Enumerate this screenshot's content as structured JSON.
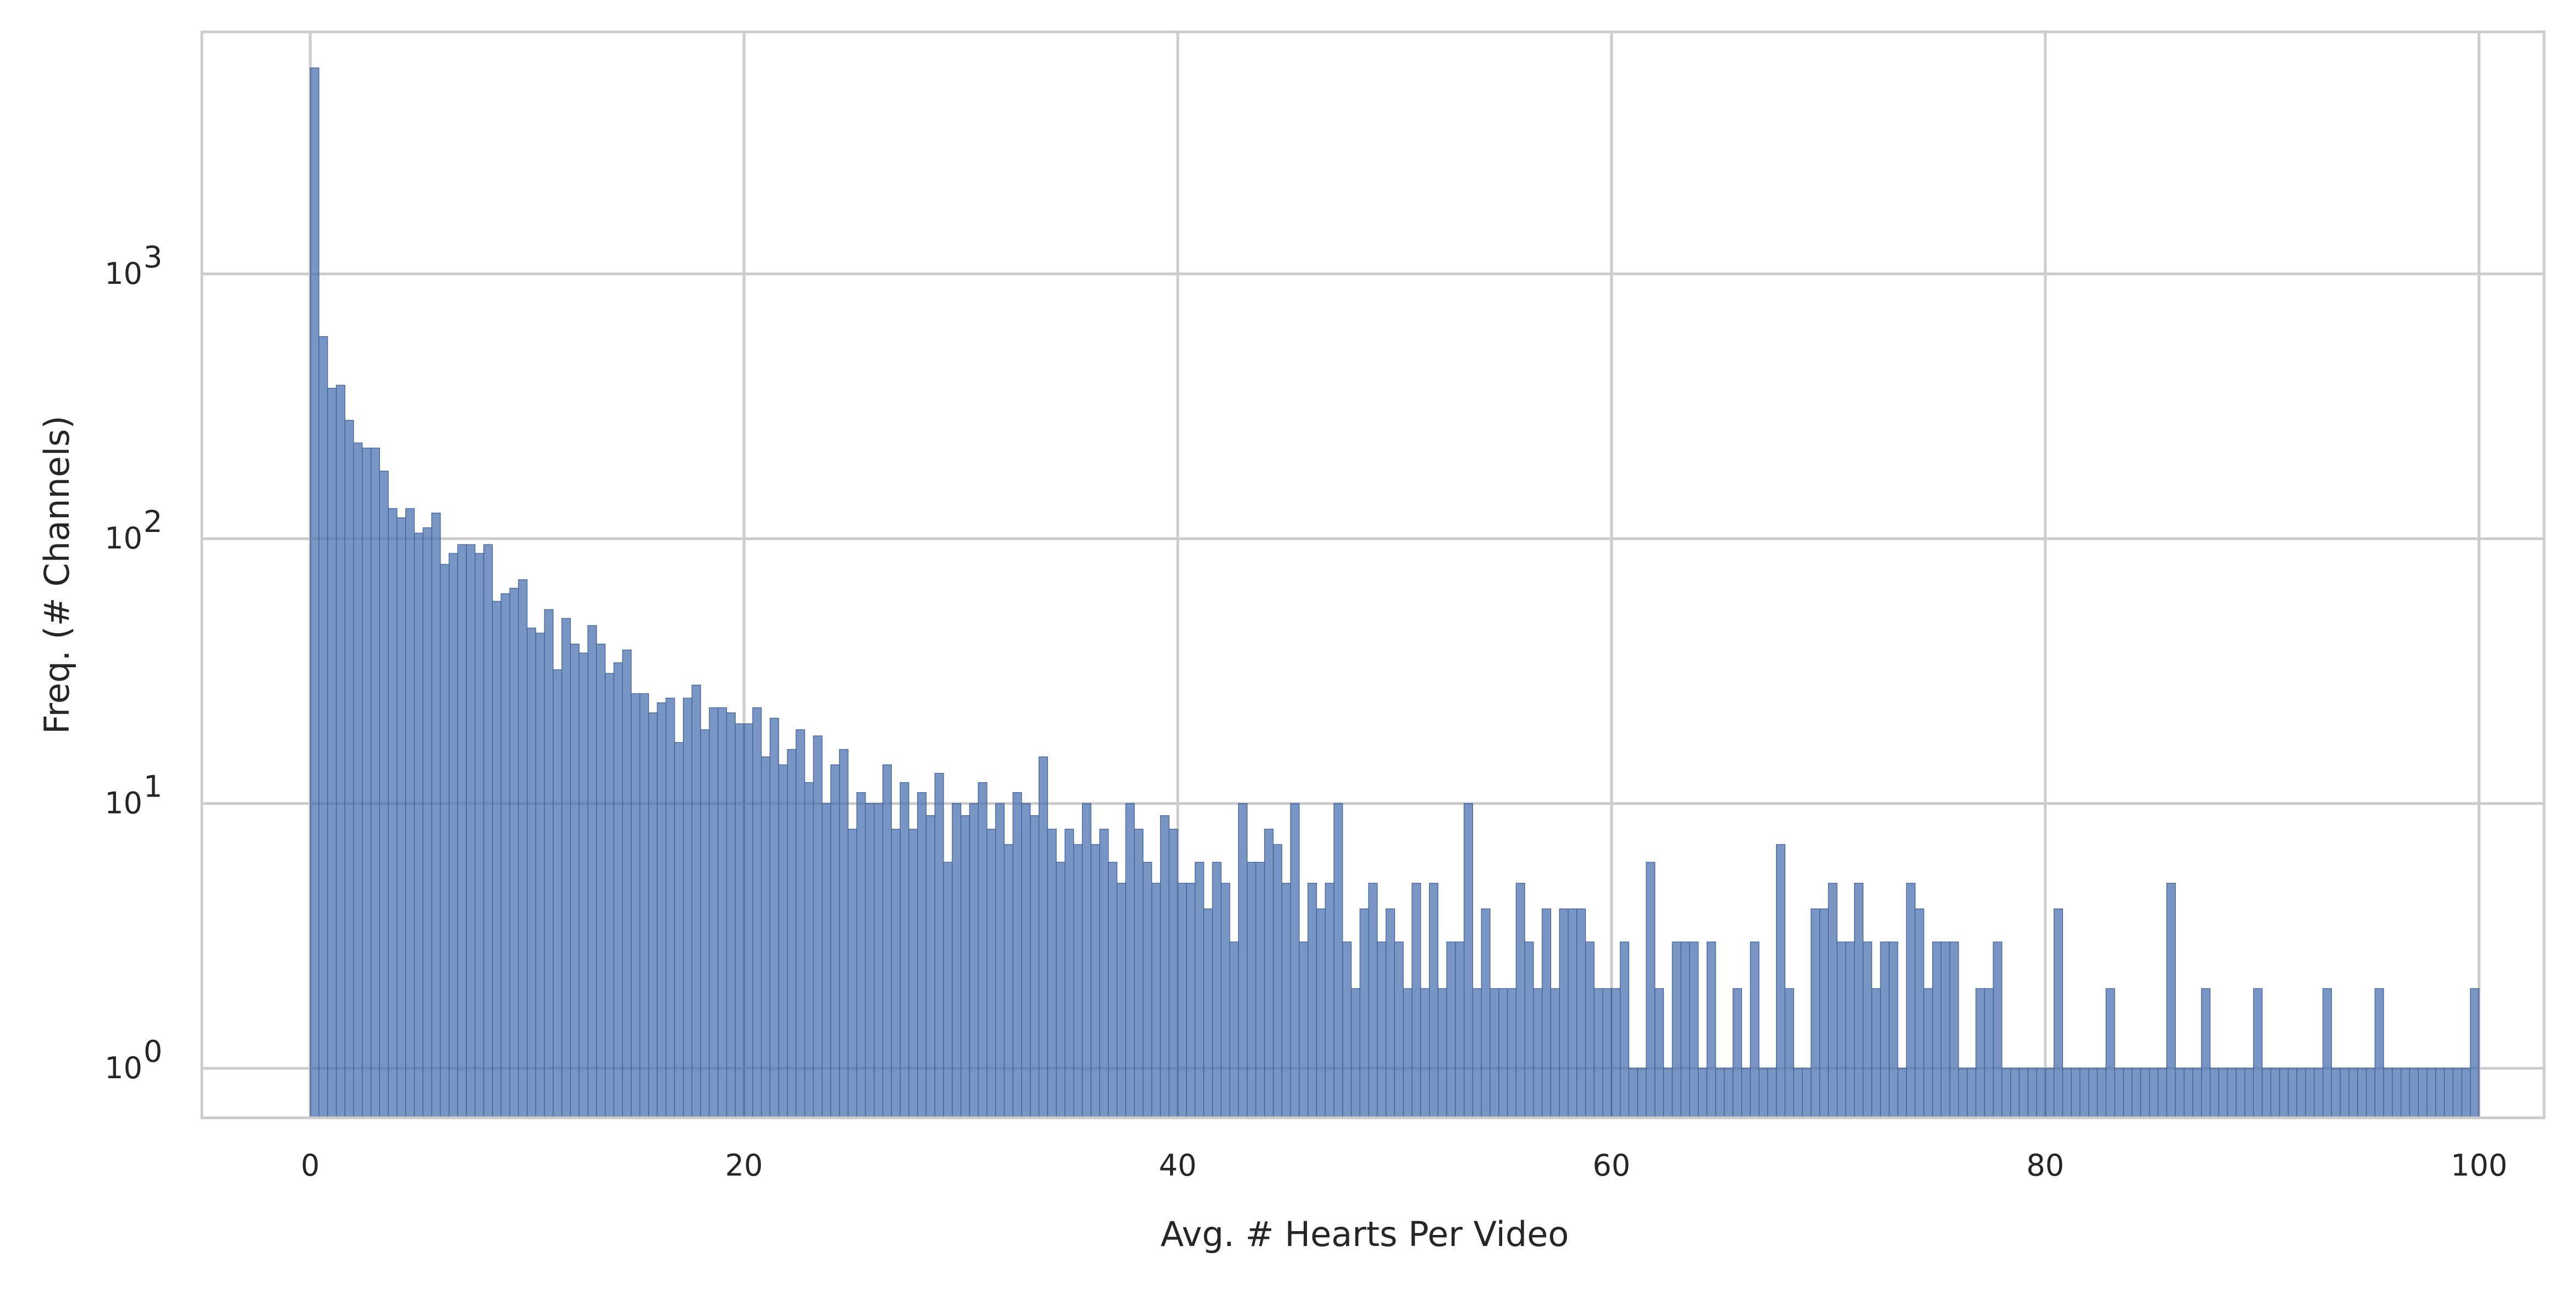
{
  "chart_data": {
    "type": "bar",
    "title": "",
    "xlabel": "Avg. # Hearts Per Video",
    "ylabel": "Freq. (# Channels)",
    "xlim": [
      -5,
      103
    ],
    "ylim": [
      0.65,
      8200
    ],
    "yscale": "log",
    "grid": true,
    "bin_width": 0.4,
    "x_ticks": [
      0,
      20,
      40,
      60,
      80,
      100
    ],
    "y_ticks": [
      1,
      10,
      100,
      1000
    ],
    "y_tick_bases": [
      "10",
      "10",
      "10",
      "10"
    ],
    "y_tick_exponents": [
      "0",
      "1",
      "2",
      "3"
    ],
    "color": "#4c72b0",
    "bins": [
      [
        0.0,
        6000
      ],
      [
        0.4,
        580
      ],
      [
        0.8,
        370
      ],
      [
        1.2,
        380
      ],
      [
        1.6,
        280
      ],
      [
        2.0,
        230
      ],
      [
        2.4,
        220
      ],
      [
        2.8,
        220
      ],
      [
        3.2,
        180
      ],
      [
        3.6,
        130
      ],
      [
        4.0,
        120
      ],
      [
        4.4,
        130
      ],
      [
        4.8,
        105
      ],
      [
        5.2,
        110
      ],
      [
        5.6,
        125
      ],
      [
        6.0,
        80
      ],
      [
        6.4,
        88
      ],
      [
        6.8,
        95
      ],
      [
        7.2,
        95
      ],
      [
        7.6,
        88
      ],
      [
        8.0,
        95
      ],
      [
        8.4,
        58
      ],
      [
        8.8,
        62
      ],
      [
        9.2,
        65
      ],
      [
        9.6,
        70
      ],
      [
        10.0,
        46
      ],
      [
        10.4,
        44
      ],
      [
        10.8,
        54
      ],
      [
        11.2,
        32
      ],
      [
        11.6,
        50
      ],
      [
        12.0,
        40
      ],
      [
        12.4,
        37
      ],
      [
        12.8,
        47
      ],
      [
        13.2,
        40
      ],
      [
        13.6,
        31
      ],
      [
        14.0,
        34
      ],
      [
        14.4,
        38
      ],
      [
        14.8,
        26
      ],
      [
        15.2,
        26
      ],
      [
        15.6,
        22
      ],
      [
        16.0,
        24
      ],
      [
        16.4,
        25
      ],
      [
        16.8,
        17
      ],
      [
        17.2,
        25
      ],
      [
        17.6,
        28
      ],
      [
        18.0,
        19
      ],
      [
        18.4,
        23
      ],
      [
        18.8,
        23
      ],
      [
        19.2,
        22
      ],
      [
        19.6,
        20
      ],
      [
        20.0,
        20
      ],
      [
        20.4,
        23
      ],
      [
        20.8,
        15
      ],
      [
        21.2,
        21
      ],
      [
        21.6,
        14
      ],
      [
        22.0,
        16
      ],
      [
        22.4,
        19
      ],
      [
        22.8,
        12
      ],
      [
        23.2,
        18
      ],
      [
        23.6,
        10
      ],
      [
        24.0,
        14
      ],
      [
        24.4,
        16
      ],
      [
        24.8,
        8
      ],
      [
        25.2,
        11
      ],
      [
        25.6,
        10
      ],
      [
        26.0,
        10
      ],
      [
        26.4,
        14
      ],
      [
        26.8,
        8
      ],
      [
        27.2,
        12
      ],
      [
        27.6,
        8
      ],
      [
        28.0,
        11
      ],
      [
        28.4,
        9
      ],
      [
        28.8,
        13
      ],
      [
        29.2,
        6
      ],
      [
        29.6,
        10
      ],
      [
        30.0,
        9
      ],
      [
        30.4,
        10
      ],
      [
        30.8,
        12
      ],
      [
        31.2,
        8
      ],
      [
        31.6,
        10
      ],
      [
        32.0,
        7
      ],
      [
        32.4,
        11
      ],
      [
        32.8,
        10
      ],
      [
        33.2,
        9
      ],
      [
        33.6,
        15
      ],
      [
        34.0,
        8
      ],
      [
        34.4,
        6
      ],
      [
        34.8,
        8
      ],
      [
        35.2,
        7
      ],
      [
        35.6,
        10
      ],
      [
        36.0,
        7
      ],
      [
        36.4,
        8
      ],
      [
        36.8,
        6
      ],
      [
        37.2,
        5
      ],
      [
        37.6,
        10
      ],
      [
        38.0,
        8
      ],
      [
        38.4,
        6
      ],
      [
        38.8,
        5
      ],
      [
        39.2,
        9
      ],
      [
        39.6,
        8
      ],
      [
        40.0,
        5
      ],
      [
        40.4,
        5
      ],
      [
        40.8,
        6
      ],
      [
        41.2,
        4
      ],
      [
        41.6,
        6
      ],
      [
        42.0,
        5
      ],
      [
        42.4,
        3
      ],
      [
        42.8,
        10
      ],
      [
        43.2,
        6
      ],
      [
        43.6,
        6
      ],
      [
        44.0,
        8
      ],
      [
        44.4,
        7
      ],
      [
        44.8,
        5
      ],
      [
        45.2,
        10
      ],
      [
        45.6,
        3
      ],
      [
        46.0,
        5
      ],
      [
        46.4,
        4
      ],
      [
        46.8,
        5
      ],
      [
        47.2,
        10
      ],
      [
        47.6,
        3
      ],
      [
        48.0,
        2
      ],
      [
        48.4,
        4
      ],
      [
        48.8,
        5
      ],
      [
        49.2,
        3
      ],
      [
        49.6,
        4
      ],
      [
        50.0,
        3
      ],
      [
        50.4,
        2
      ],
      [
        50.8,
        5
      ],
      [
        51.2,
        2
      ],
      [
        51.6,
        5
      ],
      [
        52.0,
        2
      ],
      [
        52.4,
        3
      ],
      [
        52.8,
        3
      ],
      [
        53.2,
        10
      ],
      [
        53.6,
        2
      ],
      [
        54.0,
        4
      ],
      [
        54.4,
        2
      ],
      [
        54.8,
        2
      ],
      [
        55.2,
        2
      ],
      [
        55.6,
        5
      ],
      [
        56.0,
        3
      ],
      [
        56.4,
        2
      ],
      [
        56.8,
        4
      ],
      [
        57.2,
        2
      ],
      [
        57.6,
        4
      ],
      [
        58.0,
        4
      ],
      [
        58.4,
        4
      ],
      [
        58.8,
        3
      ],
      [
        59.2,
        2
      ],
      [
        59.6,
        2
      ],
      [
        60.0,
        2
      ],
      [
        60.4,
        3
      ],
      [
        60.8,
        1
      ],
      [
        61.2,
        1
      ],
      [
        61.6,
        6
      ],
      [
        62.0,
        2
      ],
      [
        62.4,
        1
      ],
      [
        62.8,
        3
      ],
      [
        63.2,
        3
      ],
      [
        63.6,
        3
      ],
      [
        64.0,
        1
      ],
      [
        64.4,
        3
      ],
      [
        64.8,
        1
      ],
      [
        65.2,
        1
      ],
      [
        65.6,
        2
      ],
      [
        66.0,
        1
      ],
      [
        66.4,
        3
      ],
      [
        66.8,
        1
      ],
      [
        67.2,
        1
      ],
      [
        67.6,
        7
      ],
      [
        68.0,
        2
      ],
      [
        68.4,
        1
      ],
      [
        68.8,
        1
      ],
      [
        69.2,
        4
      ],
      [
        69.6,
        4
      ],
      [
        70.0,
        5
      ],
      [
        70.4,
        3
      ],
      [
        70.8,
        3
      ],
      [
        71.2,
        5
      ],
      [
        71.6,
        3
      ],
      [
        72.0,
        2
      ],
      [
        72.4,
        3
      ],
      [
        72.8,
        3
      ],
      [
        73.2,
        1
      ],
      [
        73.6,
        5
      ],
      [
        74.0,
        4
      ],
      [
        74.4,
        2
      ],
      [
        74.8,
        3
      ],
      [
        75.2,
        3
      ],
      [
        75.6,
        3
      ],
      [
        76.0,
        1
      ],
      [
        76.4,
        1
      ],
      [
        76.8,
        2
      ],
      [
        77.2,
        2
      ],
      [
        77.6,
        3
      ],
      [
        78.0,
        1
      ],
      [
        78.4,
        1
      ],
      [
        78.8,
        1
      ],
      [
        79.2,
        1
      ],
      [
        79.6,
        1
      ],
      [
        80.0,
        1
      ],
      [
        80.4,
        4
      ],
      [
        80.8,
        1
      ],
      [
        81.2,
        1
      ],
      [
        81.6,
        1
      ],
      [
        82.0,
        1
      ],
      [
        82.4,
        1
      ],
      [
        82.8,
        2
      ],
      [
        83.2,
        1
      ],
      [
        83.6,
        1
      ],
      [
        84.0,
        1
      ],
      [
        84.4,
        1
      ],
      [
        84.8,
        1
      ],
      [
        85.2,
        1
      ],
      [
        85.6,
        5
      ],
      [
        86.0,
        1
      ],
      [
        86.4,
        1
      ],
      [
        86.8,
        1
      ],
      [
        87.2,
        2
      ],
      [
        87.6,
        1
      ],
      [
        88.0,
        1
      ],
      [
        88.4,
        1
      ],
      [
        88.8,
        1
      ],
      [
        89.2,
        1
      ],
      [
        89.6,
        2
      ],
      [
        90.0,
        1
      ],
      [
        90.4,
        1
      ],
      [
        90.8,
        1
      ],
      [
        91.2,
        1
      ],
      [
        91.6,
        1
      ],
      [
        92.0,
        1
      ],
      [
        92.4,
        1
      ],
      [
        92.8,
        2
      ],
      [
        93.2,
        1
      ],
      [
        93.6,
        1
      ],
      [
        94.0,
        1
      ],
      [
        94.4,
        1
      ],
      [
        94.8,
        1
      ],
      [
        95.2,
        2
      ],
      [
        95.6,
        1
      ],
      [
        96.0,
        1
      ],
      [
        96.4,
        1
      ],
      [
        96.8,
        1
      ],
      [
        97.2,
        1
      ],
      [
        97.6,
        1
      ],
      [
        98.0,
        1
      ],
      [
        98.4,
        1
      ],
      [
        98.8,
        1
      ],
      [
        99.2,
        1
      ],
      [
        99.6,
        2
      ]
    ]
  }
}
